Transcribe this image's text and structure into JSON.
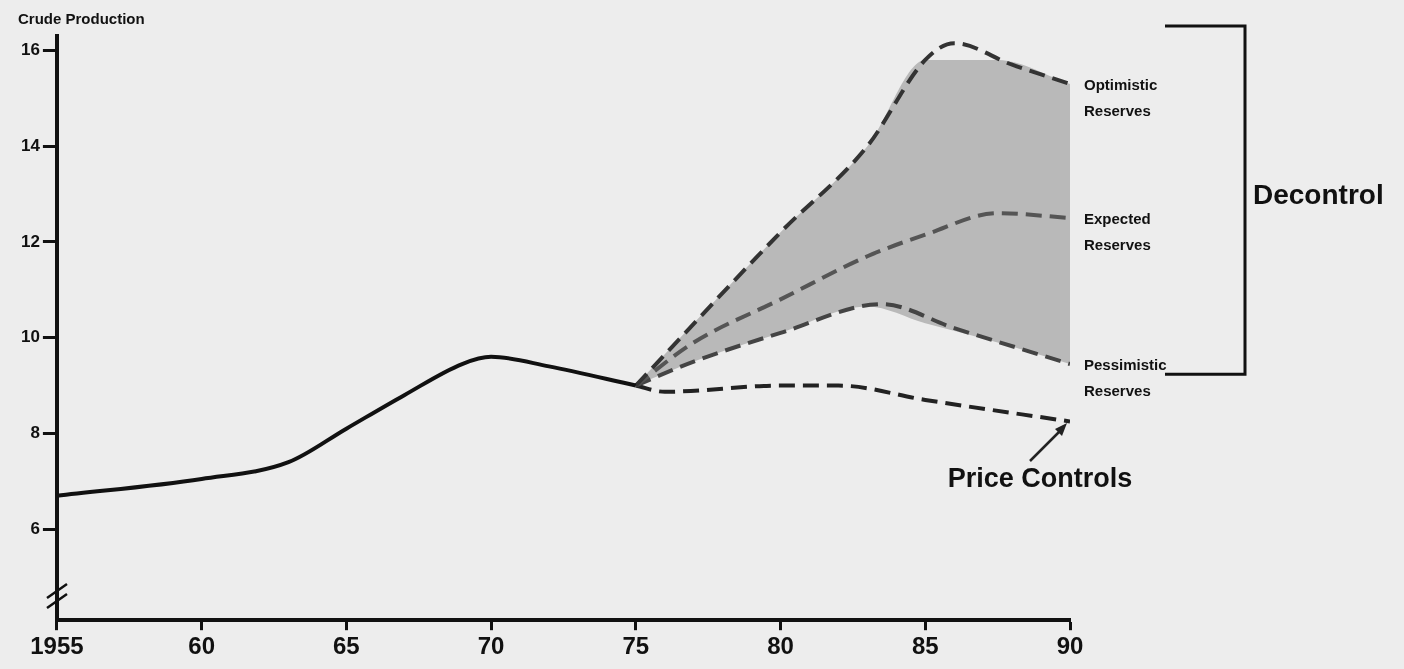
{
  "chart_data": {
    "type": "line",
    "ylabel": "Crude Production",
    "xlim": [
      1955,
      1990
    ],
    "xticks": [
      1955,
      {
        "value": 1960,
        "label": "60"
      },
      {
        "value": 1965,
        "label": "65"
      },
      {
        "value": 1970,
        "label": "70"
      },
      {
        "value": 1975,
        "label": "75"
      },
      {
        "value": 1980,
        "label": "80"
      },
      {
        "value": 1985,
        "label": "85"
      },
      {
        "value": 1990,
        "label": "90"
      }
    ],
    "ylim": [
      4.1,
      16.3
    ],
    "yticks": [
      6,
      8,
      10,
      12,
      14,
      16
    ],
    "grid": false,
    "legend": false,
    "marker": "none",
    "series": [
      {
        "color": "#111111",
        "line_style": "solid",
        "x": [
          1955,
          1960,
          1963,
          1965,
          1967,
          1969,
          1970,
          1972,
          1975
        ],
        "values": [
          6.7,
          7.05,
          7.4,
          8.1,
          8.8,
          9.45,
          9.6,
          9.4,
          9.0
        ]
      },
      {
        "name": "Optimistic Reserves",
        "color": "#333333",
        "line_style": "dashed",
        "x": [
          1975,
          1980,
          1983,
          1985,
          1986,
          1988,
          1990
        ],
        "values": [
          9.0,
          12.2,
          14.0,
          15.8,
          16.15,
          15.7,
          15.3
        ]
      },
      {
        "name": "Expected Reserves",
        "color": "#555555",
        "line_style": "dashed",
        "x": [
          1975,
          1977,
          1980,
          1983,
          1985,
          1987.5,
          1990
        ],
        "values": [
          9.0,
          9.9,
          10.8,
          11.7,
          12.15,
          12.6,
          12.5
        ],
        "lower": [
          9.0,
          9.5,
          10.1,
          10.65,
          10.3,
          9.9,
          9.45
        ],
        "upper": [
          9.0,
          10.3,
          12.2,
          14.0,
          15.8,
          15.8,
          15.3
        ]
      },
      {
        "name": "Pessimistic Reserves",
        "color": "#444444",
        "line_style": "dashed",
        "x": [
          1975,
          1977,
          1980,
          1983.5,
          1986,
          1990
        ],
        "values": [
          9.0,
          9.5,
          10.1,
          10.7,
          10.2,
          9.45
        ]
      },
      {
        "color": "#222222",
        "line_style": "dashed",
        "x": [
          1975,
          1976,
          1980,
          1982,
          1985,
          1990
        ],
        "values": [
          9.0,
          8.87,
          9.0,
          9.0,
          8.7,
          8.25
        ]
      }
    ],
    "annotations": [
      "Decontrol",
      {
        "text": "Price Controls",
        "x": 1990,
        "y": 8.25
      }
    ]
  }
}
